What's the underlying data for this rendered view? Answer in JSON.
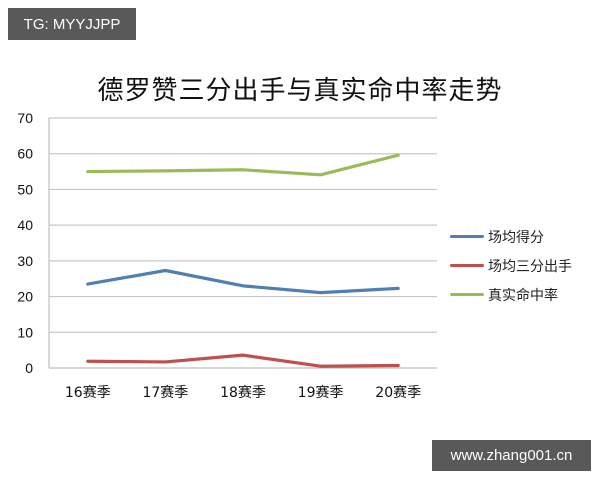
{
  "watermarks": {
    "top_left": "TG: MYYJJPP",
    "bottom_right": "www.zhang001.cn"
  },
  "chart_data": {
    "type": "line",
    "title": "德罗赞三分出手与真实命中率走势",
    "xlabel": "",
    "ylabel": "",
    "categories": [
      "16赛季",
      "17赛季",
      "18赛季",
      "19赛季",
      "20赛季"
    ],
    "yticks": [
      "0",
      "10",
      "20",
      "30",
      "40",
      "50",
      "60",
      "70"
    ],
    "ylim": [
      0,
      70
    ],
    "grid": true,
    "legend_position": "right",
    "series": [
      {
        "name": "场均得分",
        "color": "#4f7fb5",
        "values": [
          23.5,
          27.3,
          23.0,
          21.1,
          22.3
        ]
      },
      {
        "name": "场均三分出手",
        "color": "#c0504d",
        "values": [
          1.9,
          1.7,
          3.6,
          0.5,
          0.7
        ]
      },
      {
        "name": "真实命中率",
        "color": "#9bbb59",
        "values": [
          55.0,
          55.2,
          55.5,
          54.1,
          59.6
        ]
      }
    ]
  }
}
